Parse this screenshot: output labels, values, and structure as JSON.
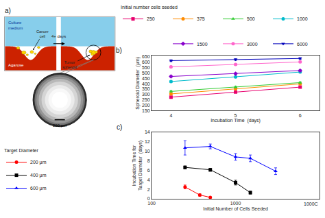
{
  "chart_data": [
    {
      "type": "schematic",
      "title": "a)",
      "annotations": [
        "Culture\nmedium",
        "Agarose",
        "Cancer\ncell",
        "4+ days",
        "Tumor\nspheroid",
        "200 μm"
      ],
      "colors": [
        "#87CEEB",
        "#CC2200",
        "#FFD700",
        "#AA8800"
      ]
    },
    {
      "type": "line",
      "title": "b)",
      "xlabel": "Incubation Time  (days)",
      "ylabel": "Spheroid Diameter  (μm)",
      "x": [
        4,
        5,
        6
      ],
      "xlim": [
        3.7,
        6.3
      ],
      "xticks": [
        4,
        5,
        6
      ],
      "ylim": [
        150,
        660
      ],
      "yticks": [
        150,
        200,
        250,
        300,
        350,
        400,
        450,
        500,
        550,
        600,
        650
      ],
      "grid": false,
      "legend": "top",
      "legend_title": "Initial number cells seeded",
      "series": [
        {
          "name": "250",
          "color": "#e8006e",
          "marker": "square",
          "line_style": "solid",
          "values": [
            275,
            322,
            368
          ],
          "yerr": [
            8,
            8,
            8
          ]
        },
        {
          "name": "375",
          "color": "#ff8c00",
          "marker": "circle",
          "line_style": "solid",
          "values": [
            305,
            352,
            398
          ],
          "yerr": [
            8,
            8,
            8
          ]
        },
        {
          "name": "500",
          "color": "#33cc33",
          "marker": "triangle-up",
          "line_style": "solid",
          "values": [
            328,
            368,
            410
          ],
          "yerr": [
            8,
            8,
            8
          ]
        },
        {
          "name": "1000",
          "color": "#00bbcc",
          "marker": "circle",
          "line_style": "solid",
          "values": [
            420,
            462,
            508
          ],
          "yerr": [
            8,
            8,
            8
          ]
        },
        {
          "name": "1500",
          "color": "#8800cc",
          "marker": "diamond",
          "line_style": "solid",
          "values": [
            467,
            493,
            522
          ],
          "yerr": [
            8,
            8,
            8
          ]
        },
        {
          "name": "3000",
          "color": "#ff66cc",
          "marker": "circle",
          "line_style": "solid",
          "values": [
            556,
            578,
            602
          ],
          "yerr": [
            8,
            8,
            8
          ]
        },
        {
          "name": "6000",
          "color": "#0000bb",
          "marker": "triangle-down",
          "line_style": "solid",
          "values": [
            614,
            624,
            634
          ],
          "yerr": [
            8,
            8,
            8
          ]
        }
      ]
    },
    {
      "type": "scatter",
      "title": "c)",
      "xlabel": "Initial Number of Cells Seeded",
      "ylabel": "Incubation Time for\nTarget Diameter  (days)",
      "log": "x",
      "xlim": [
        100,
        10000
      ],
      "xticks": [
        100,
        1000
      ],
      "ylim": [
        0,
        14
      ],
      "yticks": [
        0,
        2,
        4,
        6,
        8,
        10,
        12,
        14
      ],
      "grid": false,
      "legend": "left",
      "legend_title": "Target Diameter",
      "annotations": [
        "1000C"
      ],
      "series": [
        {
          "name": "200 μm",
          "color": "red",
          "marker": "circle",
          "line_style": "solid",
          "x": [
            250,
            375,
            500
          ],
          "values": [
            2.5,
            0.8,
            0.3
          ],
          "yerr": [
            0.4,
            0.25,
            0.1
          ]
        },
        {
          "name": "400 μm",
          "color": "black",
          "marker": "square",
          "line_style": "solid",
          "x": [
            250,
            500,
            1000,
            1500
          ],
          "values": [
            6.6,
            6.1,
            3.4,
            1.3
          ],
          "yerr": [
            0.3,
            0.3,
            0.5,
            0.3
          ]
        },
        {
          "name": "600 μm",
          "color": "blue",
          "marker": "triangle-up",
          "line_style": "solid",
          "x": [
            250,
            500,
            1000,
            1500,
            3000
          ],
          "values": [
            10.7,
            11.0,
            8.8,
            8.5,
            5.8
          ],
          "yerr": [
            1.5,
            0.5,
            0.7,
            0.7,
            0.7
          ]
        }
      ]
    }
  ]
}
